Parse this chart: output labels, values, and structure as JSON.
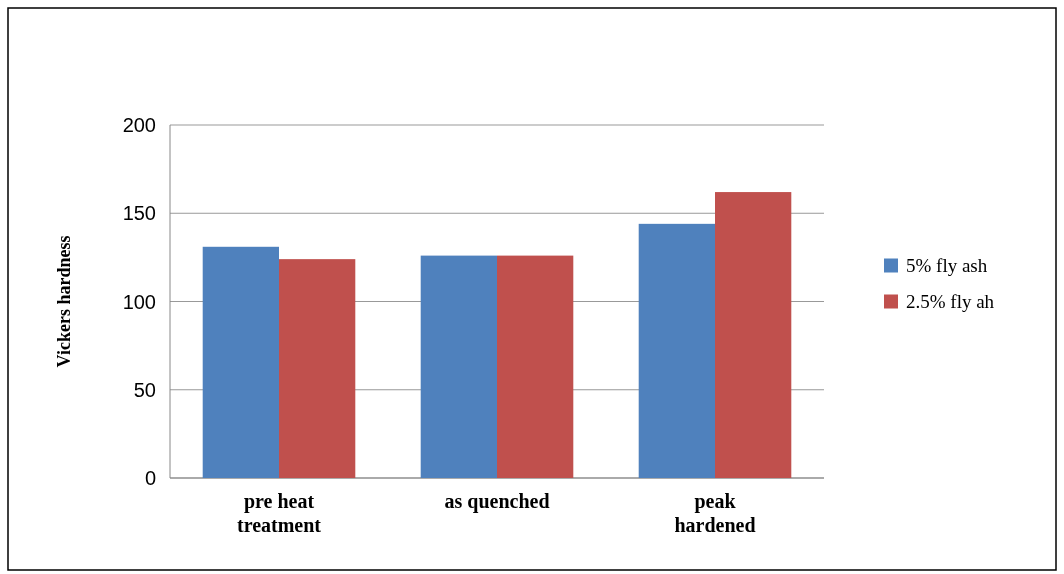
{
  "chart_data": {
    "type": "bar",
    "ylabel": "Vickers hardness",
    "categories": [
      "pre heat treatment",
      "as quenched",
      "peak hardened"
    ],
    "series": [
      {
        "name": "5% fly ash",
        "color": "#4f81bd",
        "values": [
          131,
          126,
          144
        ]
      },
      {
        "name": "2.5% fly ah",
        "color": "#c0504d",
        "values": [
          124,
          126,
          162
        ]
      }
    ],
    "ylim": [
      0,
      200
    ],
    "yticks": [
      0,
      50,
      100,
      150,
      200
    ],
    "grid": "y",
    "legend": "right"
  }
}
